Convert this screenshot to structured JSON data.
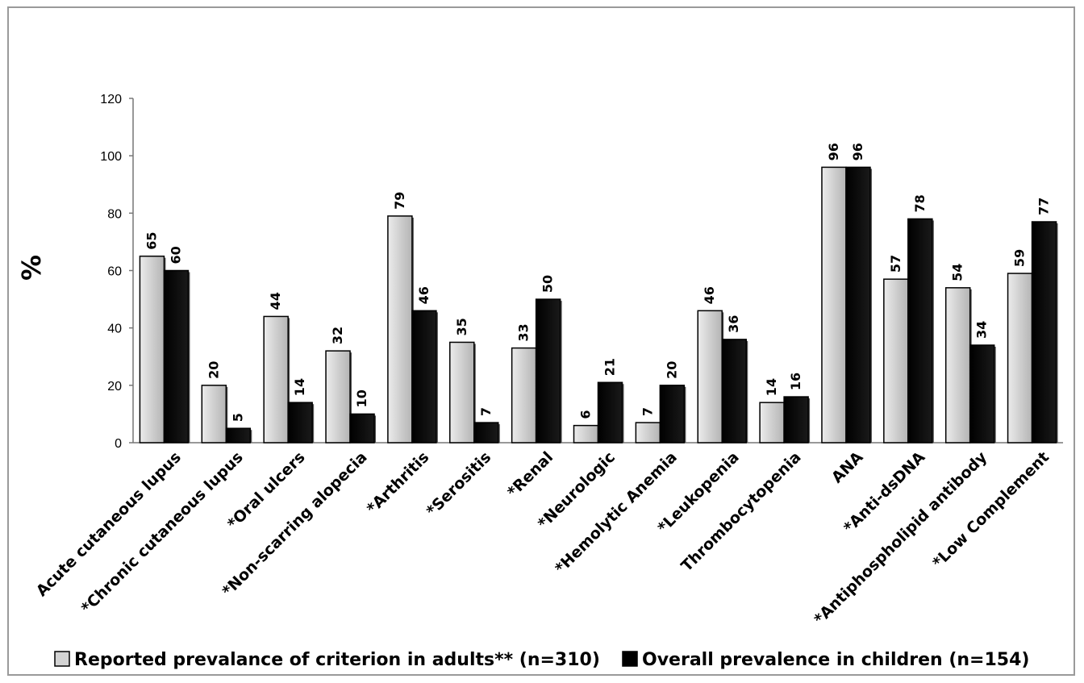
{
  "chart_data": {
    "type": "bar",
    "ylabel": "%",
    "ylim": [
      0,
      120
    ],
    "yticks": [
      0,
      20,
      40,
      60,
      80,
      100,
      120
    ],
    "grid": false,
    "legend_position": "bottom",
    "categories": [
      "Acute cutaneous lupus",
      "*Chronic cutaneous lupus",
      "*Oral ulcers",
      "*Non-scarring alopecia",
      "*Arthritis",
      "*Serositis",
      "*Renal",
      "*Neurologic",
      "*Hemolytic Anemia",
      "*Leukopenia",
      "Thrombocytopenia",
      "ANA",
      "*Anti-dsDNA",
      "*Antiphospholipid antibody",
      "*Low Complement"
    ],
    "series": [
      {
        "name": "Reported prevalance of criterion in adults** (n=310)",
        "color": "#d3d3d3",
        "values": [
          65,
          20,
          44,
          32,
          79,
          35,
          33,
          6,
          7,
          46,
          14,
          96,
          57,
          54,
          59
        ]
      },
      {
        "name": "Overall prevalence in children (n=154)",
        "color": "#000000",
        "values": [
          60,
          5,
          14,
          10,
          46,
          7,
          50,
          21,
          20,
          36,
          16,
          96,
          78,
          34,
          77
        ]
      }
    ]
  }
}
